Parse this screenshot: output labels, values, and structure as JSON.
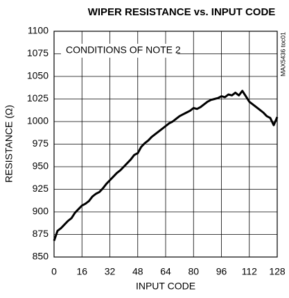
{
  "chart_data": {
    "type": "line",
    "title": "WIPER RESISTANCE vs. INPUT CODE",
    "xlabel": "INPUT CODE",
    "ylabel": "RESISTANCE (Ω)",
    "annotation": "CONDITIONS OF NOTE 2",
    "side_note": "MAX5436 toc01",
    "xlim": [
      0,
      128
    ],
    "xticks": [
      0,
      16,
      32,
      48,
      64,
      80,
      96,
      112,
      128
    ],
    "ylim": [
      850,
      1100
    ],
    "yticks": [
      850,
      875,
      900,
      925,
      950,
      975,
      1000,
      1025,
      1050,
      1075,
      1100
    ],
    "grid": true,
    "series": [
      {
        "color": "#000000",
        "x": [
          0,
          2,
          4,
          6,
          8,
          10,
          12,
          14,
          16,
          18,
          20,
          22,
          24,
          26,
          28,
          30,
          32,
          34,
          36,
          38,
          40,
          42,
          44,
          46,
          48,
          50,
          52,
          54,
          56,
          58,
          60,
          62,
          64,
          66,
          68,
          70,
          72,
          74,
          76,
          78,
          80,
          82,
          84,
          86,
          88,
          90,
          92,
          94,
          96,
          98,
          100,
          102,
          104,
          106,
          108,
          110,
          112,
          114,
          116,
          118,
          120,
          122,
          124,
          126,
          128
        ],
        "values": [
          868,
          879,
          882,
          886,
          890,
          893,
          899,
          903,
          907,
          909,
          912,
          917,
          920,
          922,
          926,
          931,
          935,
          939,
          943,
          946,
          950,
          954,
          958,
          963,
          965,
          972,
          976,
          979,
          983,
          986,
          989,
          992,
          995,
          998,
          1000,
          1003,
          1006,
          1008,
          1010,
          1012,
          1015,
          1014,
          1016,
          1019,
          1022,
          1024,
          1025,
          1026,
          1028,
          1027,
          1030,
          1029,
          1032,
          1029,
          1034,
          1028,
          1022,
          1019,
          1016,
          1013,
          1010,
          1006,
          1004,
          996,
          1005
        ]
      }
    ]
  }
}
